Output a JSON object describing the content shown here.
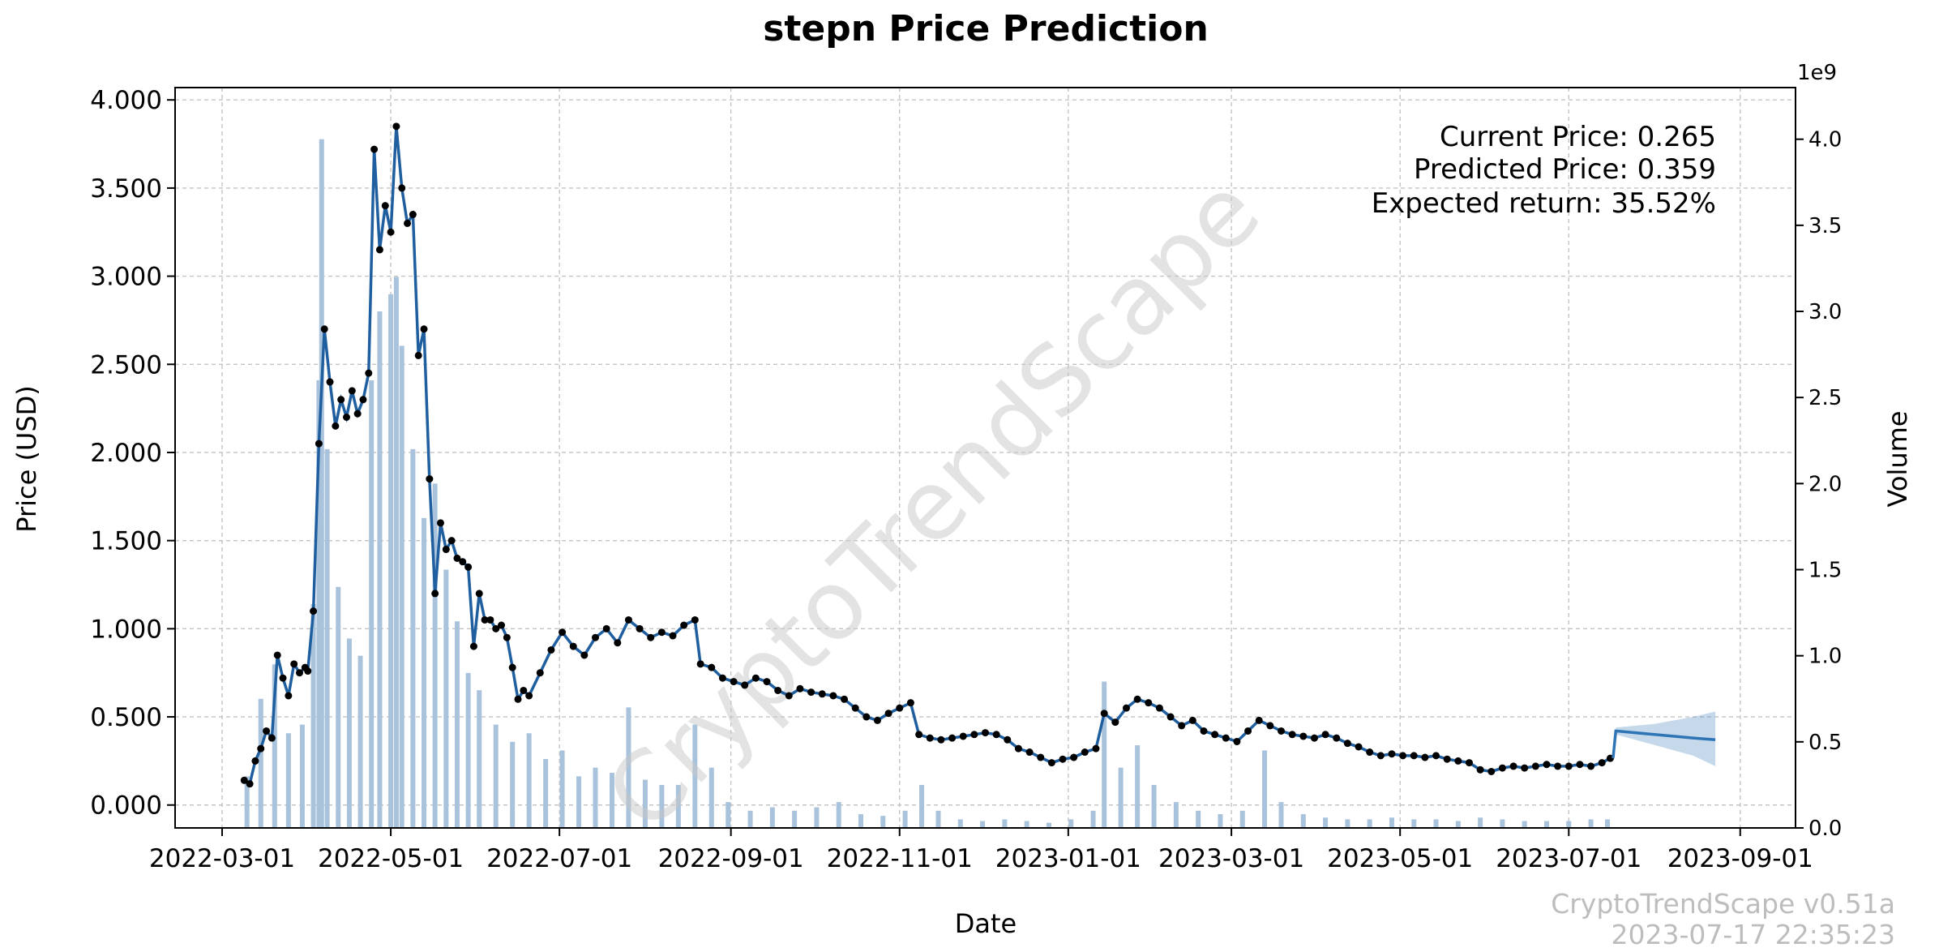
{
  "chart_data": {
    "type": "line",
    "title": "stepn Price Prediction",
    "xlabel": "Date",
    "ylabel": "Price (USD)",
    "y2label": "Volume",
    "y2_exponent": "1e9",
    "xticks": [
      "2022-03-01",
      "2022-05-01",
      "2022-07-01",
      "2022-09-01",
      "2022-11-01",
      "2023-01-01",
      "2023-03-01",
      "2023-05-01",
      "2023-07-01",
      "2023-09-01"
    ],
    "xlim": [
      "2022-02-12",
      "2023-09-21"
    ],
    "ylim": [
      -0.13,
      4.07
    ],
    "yticks": [
      "0.000",
      "0.500",
      "1.000",
      "1.500",
      "2.000",
      "2.500",
      "3.000",
      "3.500",
      "4.000"
    ],
    "y2lim": [
      0,
      4.3
    ],
    "y2ticks": [
      "0.0",
      "0.5",
      "1.0",
      "1.5",
      "2.0",
      "2.5",
      "3.0",
      "3.5",
      "4.0"
    ],
    "grid": true,
    "annotations": {
      "current_price": "Current Price: 0.265",
      "predicted_price": "Predicted Price: 0.359",
      "expected_return": "Expected return: 35.52%"
    },
    "watermark": "CryptoTrendScape",
    "footer": {
      "version": "CryptoTrendScape v0.51a",
      "timestamp": "2023-07-17 22:35:23"
    },
    "price_series": {
      "name": "Price",
      "points": [
        [
          "2022-03-09",
          0.14
        ],
        [
          "2022-03-11",
          0.12
        ],
        [
          "2022-03-13",
          0.25
        ],
        [
          "2022-03-15",
          0.32
        ],
        [
          "2022-03-17",
          0.42
        ],
        [
          "2022-03-19",
          0.38
        ],
        [
          "2022-03-21",
          0.85
        ],
        [
          "2022-03-23",
          0.72
        ],
        [
          "2022-03-25",
          0.62
        ],
        [
          "2022-03-27",
          0.8
        ],
        [
          "2022-03-29",
          0.75
        ],
        [
          "2022-03-31",
          0.78
        ],
        [
          "2022-04-01",
          0.76
        ],
        [
          "2022-04-03",
          1.1
        ],
        [
          "2022-04-05",
          2.05
        ],
        [
          "2022-04-07",
          2.7
        ],
        [
          "2022-04-09",
          2.4
        ],
        [
          "2022-04-11",
          2.15
        ],
        [
          "2022-04-13",
          2.3
        ],
        [
          "2022-04-15",
          2.2
        ],
        [
          "2022-04-17",
          2.35
        ],
        [
          "2022-04-19",
          2.22
        ],
        [
          "2022-04-21",
          2.3
        ],
        [
          "2022-04-23",
          2.45
        ],
        [
          "2022-04-25",
          3.72
        ],
        [
          "2022-04-27",
          3.15
        ],
        [
          "2022-04-29",
          3.4
        ],
        [
          "2022-05-01",
          3.25
        ],
        [
          "2022-05-03",
          3.85
        ],
        [
          "2022-05-05",
          3.5
        ],
        [
          "2022-05-07",
          3.3
        ],
        [
          "2022-05-09",
          3.35
        ],
        [
          "2022-05-11",
          2.55
        ],
        [
          "2022-05-13",
          2.7
        ],
        [
          "2022-05-15",
          1.85
        ],
        [
          "2022-05-17",
          1.2
        ],
        [
          "2022-05-19",
          1.6
        ],
        [
          "2022-05-21",
          1.45
        ],
        [
          "2022-05-23",
          1.5
        ],
        [
          "2022-05-25",
          1.4
        ],
        [
          "2022-05-27",
          1.38
        ],
        [
          "2022-05-29",
          1.35
        ],
        [
          "2022-05-31",
          0.9
        ],
        [
          "2022-06-02",
          1.2
        ],
        [
          "2022-06-04",
          1.05
        ],
        [
          "2022-06-06",
          1.05
        ],
        [
          "2022-06-08",
          1.0
        ],
        [
          "2022-06-10",
          1.02
        ],
        [
          "2022-06-12",
          0.95
        ],
        [
          "2022-06-14",
          0.78
        ],
        [
          "2022-06-16",
          0.6
        ],
        [
          "2022-06-18",
          0.65
        ],
        [
          "2022-06-20",
          0.62
        ],
        [
          "2022-06-24",
          0.75
        ],
        [
          "2022-06-28",
          0.88
        ],
        [
          "2022-07-02",
          0.98
        ],
        [
          "2022-07-06",
          0.9
        ],
        [
          "2022-07-10",
          0.85
        ],
        [
          "2022-07-14",
          0.95
        ],
        [
          "2022-07-18",
          1.0
        ],
        [
          "2022-07-22",
          0.92
        ],
        [
          "2022-07-26",
          1.05
        ],
        [
          "2022-07-30",
          1.0
        ],
        [
          "2022-08-03",
          0.95
        ],
        [
          "2022-08-07",
          0.98
        ],
        [
          "2022-08-11",
          0.96
        ],
        [
          "2022-08-15",
          1.02
        ],
        [
          "2022-08-19",
          1.05
        ],
        [
          "2022-08-21",
          0.8
        ],
        [
          "2022-08-25",
          0.78
        ],
        [
          "2022-08-29",
          0.72
        ],
        [
          "2022-09-02",
          0.7
        ],
        [
          "2022-09-06",
          0.68
        ],
        [
          "2022-09-10",
          0.72
        ],
        [
          "2022-09-14",
          0.7
        ],
        [
          "2022-09-18",
          0.65
        ],
        [
          "2022-09-22",
          0.62
        ],
        [
          "2022-09-26",
          0.66
        ],
        [
          "2022-09-30",
          0.64
        ],
        [
          "2022-10-04",
          0.63
        ],
        [
          "2022-10-08",
          0.62
        ],
        [
          "2022-10-12",
          0.6
        ],
        [
          "2022-10-16",
          0.55
        ],
        [
          "2022-10-20",
          0.5
        ],
        [
          "2022-10-24",
          0.48
        ],
        [
          "2022-10-28",
          0.52
        ],
        [
          "2022-11-01",
          0.55
        ],
        [
          "2022-11-05",
          0.58
        ],
        [
          "2022-11-08",
          0.4
        ],
        [
          "2022-11-12",
          0.38
        ],
        [
          "2022-11-16",
          0.37
        ],
        [
          "2022-11-20",
          0.38
        ],
        [
          "2022-11-24",
          0.39
        ],
        [
          "2022-11-28",
          0.4
        ],
        [
          "2022-12-02",
          0.41
        ],
        [
          "2022-12-06",
          0.4
        ],
        [
          "2022-12-10",
          0.37
        ],
        [
          "2022-12-14",
          0.32
        ],
        [
          "2022-12-18",
          0.3
        ],
        [
          "2022-12-22",
          0.27
        ],
        [
          "2022-12-26",
          0.24
        ],
        [
          "2022-12-30",
          0.26
        ],
        [
          "2023-01-03",
          0.27
        ],
        [
          "2023-01-07",
          0.3
        ],
        [
          "2023-01-11",
          0.32
        ],
        [
          "2023-01-14",
          0.52
        ],
        [
          "2023-01-18",
          0.47
        ],
        [
          "2023-01-22",
          0.55
        ],
        [
          "2023-01-26",
          0.6
        ],
        [
          "2023-01-30",
          0.58
        ],
        [
          "2023-02-03",
          0.55
        ],
        [
          "2023-02-07",
          0.5
        ],
        [
          "2023-02-11",
          0.45
        ],
        [
          "2023-02-15",
          0.48
        ],
        [
          "2023-02-19",
          0.42
        ],
        [
          "2023-02-23",
          0.4
        ],
        [
          "2023-02-27",
          0.38
        ],
        [
          "2023-03-03",
          0.36
        ],
        [
          "2023-03-07",
          0.42
        ],
        [
          "2023-03-11",
          0.48
        ],
        [
          "2023-03-15",
          0.45
        ],
        [
          "2023-03-19",
          0.42
        ],
        [
          "2023-03-23",
          0.4
        ],
        [
          "2023-03-27",
          0.39
        ],
        [
          "2023-03-31",
          0.38
        ],
        [
          "2023-04-04",
          0.4
        ],
        [
          "2023-04-08",
          0.38
        ],
        [
          "2023-04-12",
          0.35
        ],
        [
          "2023-04-16",
          0.33
        ],
        [
          "2023-04-20",
          0.3
        ],
        [
          "2023-04-24",
          0.28
        ],
        [
          "2023-04-28",
          0.29
        ],
        [
          "2023-05-02",
          0.28
        ],
        [
          "2023-05-06",
          0.28
        ],
        [
          "2023-05-10",
          0.27
        ],
        [
          "2023-05-14",
          0.28
        ],
        [
          "2023-05-18",
          0.26
        ],
        [
          "2023-05-22",
          0.25
        ],
        [
          "2023-05-26",
          0.24
        ],
        [
          "2023-05-30",
          0.2
        ],
        [
          "2023-06-03",
          0.19
        ],
        [
          "2023-06-07",
          0.21
        ],
        [
          "2023-06-11",
          0.22
        ],
        [
          "2023-06-15",
          0.21
        ],
        [
          "2023-06-19",
          0.22
        ],
        [
          "2023-06-23",
          0.23
        ],
        [
          "2023-06-27",
          0.22
        ],
        [
          "2023-07-01",
          0.22
        ],
        [
          "2023-07-05",
          0.23
        ],
        [
          "2023-07-09",
          0.22
        ],
        [
          "2023-07-13",
          0.24
        ],
        [
          "2023-07-16",
          0.265
        ]
      ]
    },
    "prediction_series": {
      "name": "Prediction",
      "points": [
        [
          "2023-07-17",
          0.265
        ],
        [
          "2023-07-18",
          0.42
        ],
        [
          "2023-08-01",
          0.4
        ],
        [
          "2023-08-15",
          0.38
        ],
        [
          "2023-08-23",
          0.37
        ]
      ],
      "band_lower": [
        [
          "2023-07-18",
          0.4
        ],
        [
          "2023-08-01",
          0.34
        ],
        [
          "2023-08-15",
          0.28
        ],
        [
          "2023-08-23",
          0.22
        ]
      ],
      "band_upper": [
        [
          "2023-07-18",
          0.44
        ],
        [
          "2023-08-01",
          0.46
        ],
        [
          "2023-08-15",
          0.5
        ],
        [
          "2023-08-23",
          0.53
        ]
      ]
    },
    "volume_series": {
      "name": "Volume (1e9)",
      "points": [
        [
          "2022-03-10",
          0.3
        ],
        [
          "2022-03-15",
          0.75
        ],
        [
          "2022-03-20",
          0.95
        ],
        [
          "2022-03-25",
          0.55
        ],
        [
          "2022-03-30",
          0.6
        ],
        [
          "2022-04-03",
          1.3
        ],
        [
          "2022-04-05",
          2.6
        ],
        [
          "2022-04-06",
          4.0
        ],
        [
          "2022-04-08",
          2.2
        ],
        [
          "2022-04-12",
          1.4
        ],
        [
          "2022-04-16",
          1.1
        ],
        [
          "2022-04-20",
          1.0
        ],
        [
          "2022-04-24",
          2.6
        ],
        [
          "2022-04-27",
          3.0
        ],
        [
          "2022-05-01",
          3.1
        ],
        [
          "2022-05-03",
          3.2
        ],
        [
          "2022-05-05",
          2.8
        ],
        [
          "2022-05-09",
          2.2
        ],
        [
          "2022-05-13",
          1.8
        ],
        [
          "2022-05-17",
          2.0
        ],
        [
          "2022-05-21",
          1.5
        ],
        [
          "2022-05-25",
          1.2
        ],
        [
          "2022-05-29",
          0.9
        ],
        [
          "2022-06-02",
          0.8
        ],
        [
          "2022-06-08",
          0.6
        ],
        [
          "2022-06-14",
          0.5
        ],
        [
          "2022-06-20",
          0.55
        ],
        [
          "2022-06-26",
          0.4
        ],
        [
          "2022-07-02",
          0.45
        ],
        [
          "2022-07-08",
          0.3
        ],
        [
          "2022-07-14",
          0.35
        ],
        [
          "2022-07-20",
          0.32
        ],
        [
          "2022-07-26",
          0.7
        ],
        [
          "2022-08-01",
          0.28
        ],
        [
          "2022-08-07",
          0.25
        ],
        [
          "2022-08-13",
          0.25
        ],
        [
          "2022-08-19",
          0.6
        ],
        [
          "2022-08-25",
          0.35
        ],
        [
          "2022-08-31",
          0.15
        ],
        [
          "2022-09-08",
          0.1
        ],
        [
          "2022-09-16",
          0.12
        ],
        [
          "2022-09-24",
          0.1
        ],
        [
          "2022-10-02",
          0.12
        ],
        [
          "2022-10-10",
          0.15
        ],
        [
          "2022-10-18",
          0.08
        ],
        [
          "2022-10-26",
          0.07
        ],
        [
          "2022-11-03",
          0.1
        ],
        [
          "2022-11-09",
          0.25
        ],
        [
          "2022-11-15",
          0.1
        ],
        [
          "2022-11-23",
          0.05
        ],
        [
          "2022-12-01",
          0.04
        ],
        [
          "2022-12-09",
          0.05
        ],
        [
          "2022-12-17",
          0.04
        ],
        [
          "2022-12-25",
          0.03
        ],
        [
          "2023-01-02",
          0.05
        ],
        [
          "2023-01-10",
          0.1
        ],
        [
          "2023-01-14",
          0.85
        ],
        [
          "2023-01-20",
          0.35
        ],
        [
          "2023-01-26",
          0.48
        ],
        [
          "2023-02-01",
          0.25
        ],
        [
          "2023-02-09",
          0.15
        ],
        [
          "2023-02-17",
          0.1
        ],
        [
          "2023-02-25",
          0.08
        ],
        [
          "2023-03-05",
          0.1
        ],
        [
          "2023-03-13",
          0.45
        ],
        [
          "2023-03-19",
          0.15
        ],
        [
          "2023-03-27",
          0.08
        ],
        [
          "2023-04-04",
          0.06
        ],
        [
          "2023-04-12",
          0.05
        ],
        [
          "2023-04-20",
          0.05
        ],
        [
          "2023-04-28",
          0.06
        ],
        [
          "2023-05-06",
          0.05
        ],
        [
          "2023-05-14",
          0.05
        ],
        [
          "2023-05-22",
          0.04
        ],
        [
          "2023-05-30",
          0.06
        ],
        [
          "2023-06-07",
          0.05
        ],
        [
          "2023-06-15",
          0.04
        ],
        [
          "2023-06-23",
          0.04
        ],
        [
          "2023-07-01",
          0.04
        ],
        [
          "2023-07-09",
          0.05
        ],
        [
          "2023-07-15",
          0.05
        ]
      ]
    }
  }
}
